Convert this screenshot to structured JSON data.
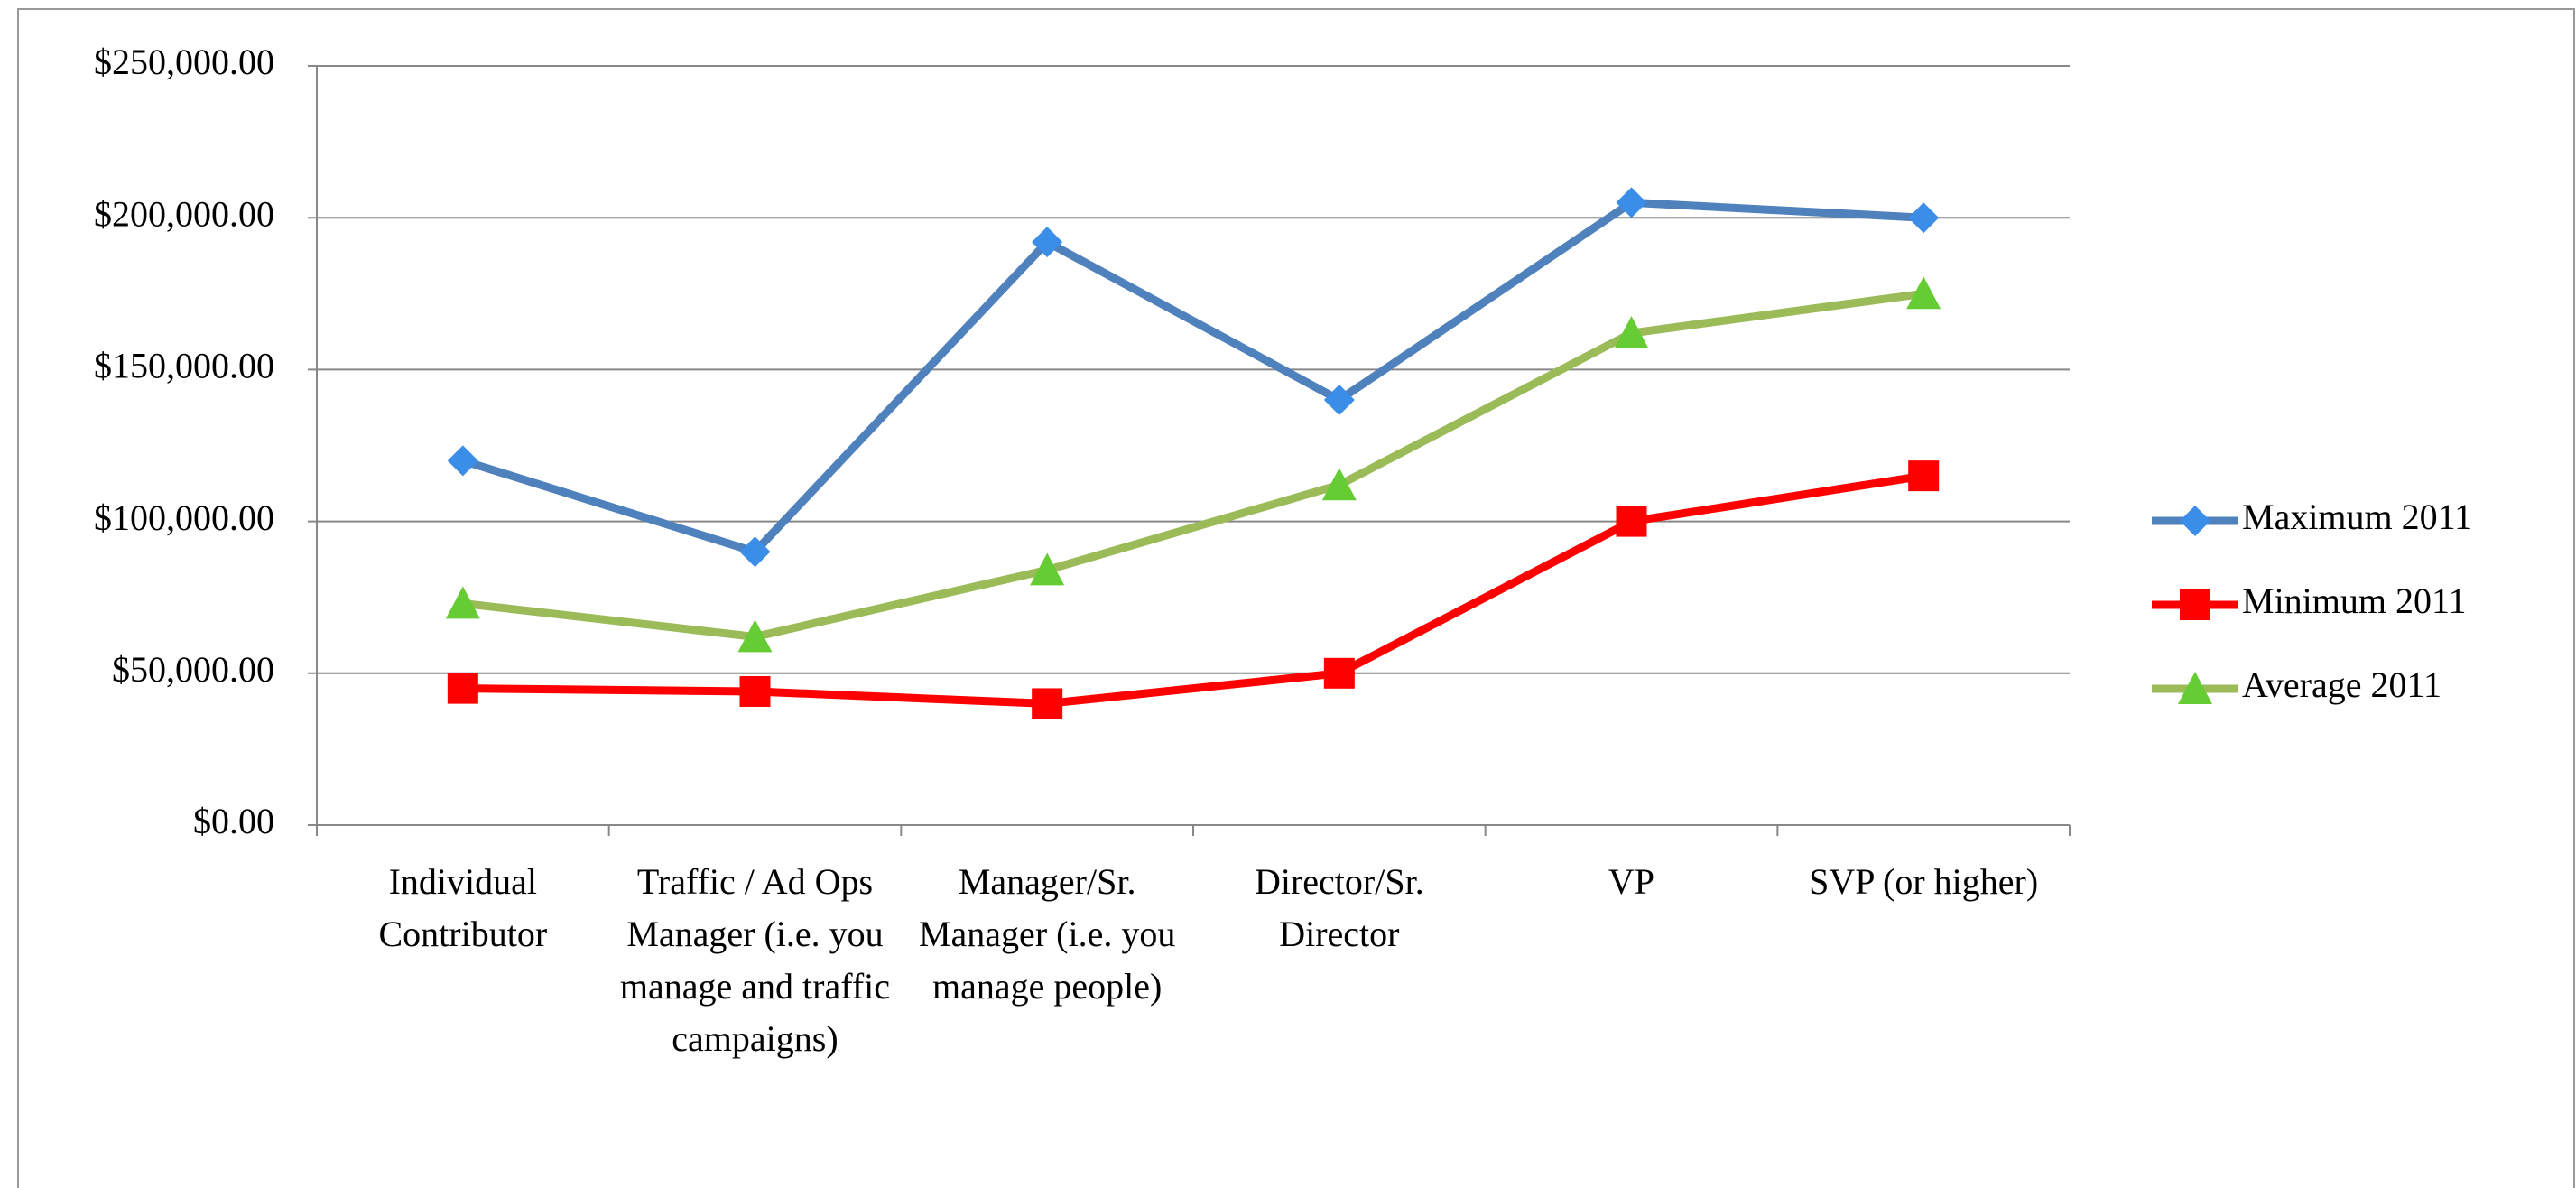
{
  "chart_data": {
    "type": "line",
    "categories": [
      "Individual Contributor",
      "Traffic / Ad Ops Manager (i.e. you manage and traffic campaigns)",
      "Manager/Sr. Manager (i.e. you manage people)",
      "Director/Sr. Director",
      "VP",
      "SVP (or higher)"
    ],
    "series": [
      {
        "name": "Maximum 2011",
        "color": "#4f81bd",
        "marker": "diamond",
        "marker_color": "#3b8ee8",
        "values": [
          120000,
          90000,
          192000,
          140000,
          205000,
          200000
        ]
      },
      {
        "name": "Minimum 2011",
        "color": "#ff0000",
        "marker": "square",
        "marker_color": "#ff0000",
        "values": [
          45000,
          44000,
          40000,
          50000,
          100000,
          115000
        ]
      },
      {
        "name": "Average 2011",
        "color": "#9bbb59",
        "marker": "triangle",
        "marker_color": "#66cc33",
        "values": [
          73000,
          62000,
          84000,
          112000,
          162000,
          175000
        ]
      }
    ],
    "ylim": [
      0,
      250000
    ],
    "yticks": [
      {
        "value": 0,
        "label": "$0.00"
      },
      {
        "value": 50000,
        "label": "$50,000.00"
      },
      {
        "value": 100000,
        "label": "$100,000.00"
      },
      {
        "value": 150000,
        "label": "$150,000.00"
      },
      {
        "value": 200000,
        "label": "$200,000.00"
      },
      {
        "value": 250000,
        "label": "$250,000.00"
      }
    ],
    "grid": true,
    "legend": "right"
  }
}
